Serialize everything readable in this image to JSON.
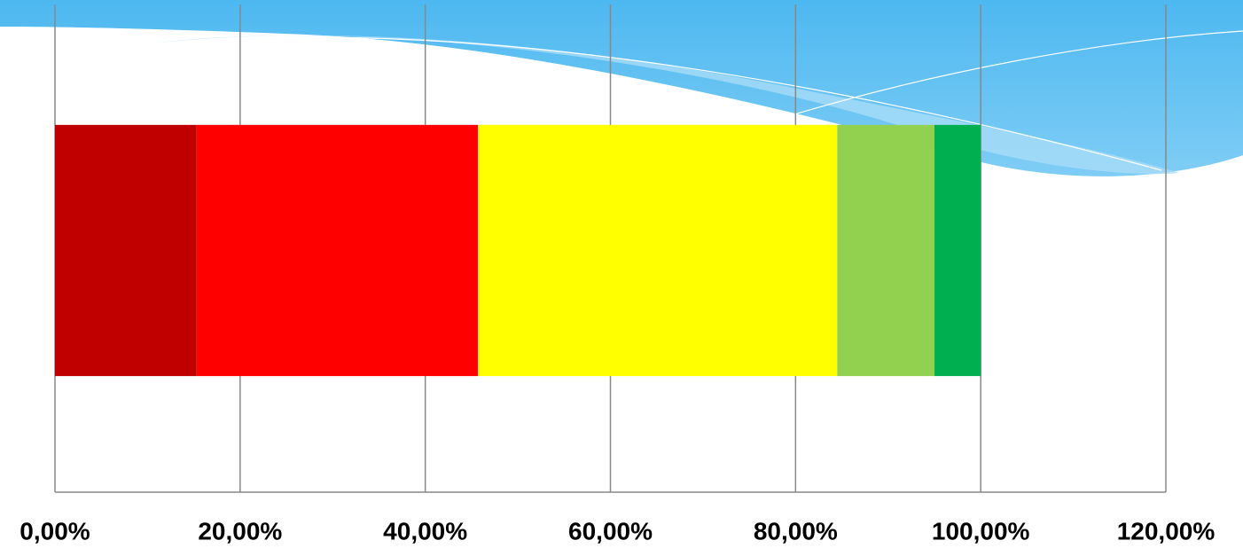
{
  "chart_data": {
    "type": "bar",
    "orientation": "horizontal",
    "stacked": true,
    "grid": true,
    "categories": [
      null
    ],
    "series": [
      {
        "color": "#c00000",
        "values": [
          15.3
        ]
      },
      {
        "color": "#ff0000",
        "values": [
          30.4
        ]
      },
      {
        "color": "#ffff00",
        "values": [
          38.8
        ]
      },
      {
        "color": "#92d050",
        "values": [
          10.5
        ]
      },
      {
        "color": "#00b050",
        "values": [
          5.0
        ]
      }
    ],
    "xlim": [
      0,
      120
    ],
    "xticks": [
      {
        "value": 0,
        "label": "0,00%"
      },
      {
        "value": 20,
        "label": "20,00%"
      },
      {
        "value": 40,
        "label": "40,00%"
      },
      {
        "value": 60,
        "label": "60,00%"
      },
      {
        "value": 80,
        "label": "80,00%"
      },
      {
        "value": 100,
        "label": "100,00%"
      },
      {
        "value": 120,
        "label": "120,00%"
      }
    ]
  }
}
